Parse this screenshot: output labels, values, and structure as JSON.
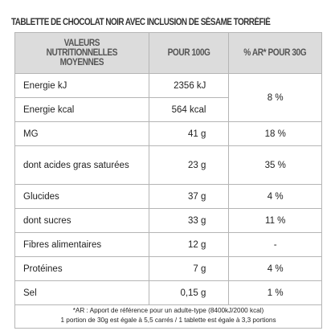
{
  "header": {
    "title": "TABLETTE DE CHOCOLAT NOIR AVEC INCLUSION DE SÉSAME TORRÉFIÉ"
  },
  "table": {
    "headers": [
      "VALEURS NUTRITIONNELLES MOYENNES",
      "POUR 100G",
      "% AR* POUR 30G"
    ],
    "rows": [
      [
        "Energie kJ",
        "2356 kJ",
        "8 %"
      ],
      [
        "Energie kcal",
        "564 kcal"
      ],
      [
        "MG",
        "41 g",
        "18 %"
      ],
      [
        "dont acides gras saturées",
        "23 g",
        "35 %"
      ],
      [
        "Glucides",
        "37 g",
        "4 %"
      ],
      [
        "dont sucres",
        "33 g",
        "11 %"
      ],
      [
        "Fibres alimentaires",
        "12 g",
        "-"
      ],
      [
        "Protéines",
        "7 g",
        "4 %"
      ],
      [
        "Sel",
        "0,15 g",
        "1 %"
      ]
    ]
  },
  "footnote": [
    "*AR : Apport de référence pour un adulte-type (8400kJ/2000 kcal)",
    "1 portion de 30g est égale à 5,5 carrés / 1 tablette est égale à 3,3 portions"
  ]
}
